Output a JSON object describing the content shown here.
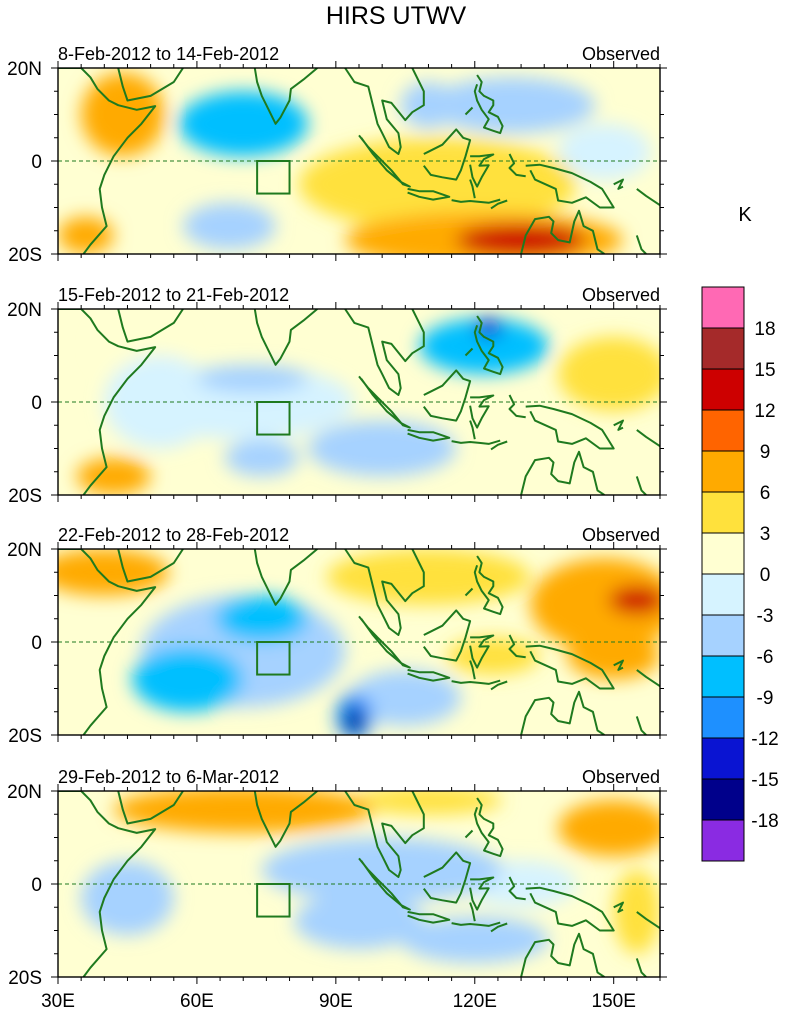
{
  "chart_data": {
    "type": "heatmap",
    "title": "HIRS UTWV",
    "units": "K",
    "xlim": [
      30,
      160
    ],
    "ylim": [
      -20,
      20
    ],
    "x_ticks": [
      {
        "value": 30,
        "label": "30E"
      },
      {
        "value": 60,
        "label": "60E"
      },
      {
        "value": 90,
        "label": "90E"
      },
      {
        "value": 120,
        "label": "120E"
      },
      {
        "value": 150,
        "label": "150E"
      }
    ],
    "y_ticks": [
      {
        "value": 20,
        "label": "20N"
      },
      {
        "value": 0,
        "label": "0"
      },
      {
        "value": -20,
        "label": "20S"
      }
    ],
    "box_region": {
      "lon": [
        73,
        80
      ],
      "lat": [
        -7,
        0
      ]
    },
    "colorbar": {
      "levels": [
        "-18",
        "-15",
        "-12",
        "-9",
        "-6",
        "-3",
        "0",
        "3",
        "6",
        "9",
        "12",
        "15",
        "18"
      ],
      "colors": [
        "#8a2be2",
        "#00008b",
        "#0a14d2",
        "#1e90ff",
        "#00bfff",
        "#a6d2ff",
        "#d6f3ff",
        "#ffffd2",
        "#ffe13c",
        "#ffaa00",
        "#ff6400",
        "#cd0000",
        "#a52a2a",
        "#ff69b4"
      ]
    },
    "panels": [
      {
        "period": "8-Feb-2012 to 14-Feb-2012",
        "label": "Observed",
        "blobs": [
          {
            "lon": 44,
            "lat": 10,
            "rlon": 9,
            "rlat": 9,
            "value": 7
          },
          {
            "lon": 36,
            "lat": -16,
            "rlon": 6,
            "rlat": 4,
            "value": 6
          },
          {
            "lon": 112,
            "lat": -5,
            "rlon": 30,
            "rlat": 10,
            "value": 4
          },
          {
            "lon": 122,
            "lat": -17,
            "rlon": 30,
            "rlat": 6,
            "value": 7
          },
          {
            "lon": 130,
            "lat": -17,
            "rlon": 14,
            "rlat": 3.5,
            "value": 12
          },
          {
            "lon": 70,
            "lat": 8,
            "rlon": 14,
            "rlat": 7,
            "value": -7
          },
          {
            "lon": 67,
            "lat": -14,
            "rlon": 10,
            "rlat": 5,
            "value": -5
          },
          {
            "lon": 110,
            "lat": 12,
            "rlon": 6,
            "rlat": 5,
            "value": -5
          },
          {
            "lon": 128,
            "lat": 12,
            "rlon": 18,
            "rlat": 6,
            "value": -4
          },
          {
            "lon": 148,
            "lat": 2,
            "rlon": 10,
            "rlat": 6,
            "value": -3
          }
        ]
      },
      {
        "period": "15-Feb-2012 to 21-Feb-2012",
        "label": "Observed",
        "blobs": [
          {
            "lon": 42,
            "lat": -16,
            "rlon": 8,
            "rlat": 4,
            "value": 7
          },
          {
            "lon": 150,
            "lat": 6,
            "rlon": 12,
            "rlat": 8,
            "value": 5
          },
          {
            "lon": 48,
            "lat": 12,
            "rlon": 10,
            "rlat": 6,
            "value": 2
          },
          {
            "lon": 122,
            "lat": 12,
            "rlon": 14,
            "rlat": 6,
            "value": -8
          },
          {
            "lon": 123,
            "lat": 16,
            "rlon": 3,
            "rlat": 2,
            "value": -14
          },
          {
            "lon": 70,
            "lat": 0,
            "rlon": 24,
            "rlat": 8,
            "value": -3
          },
          {
            "lon": 72,
            "lat": 5,
            "rlon": 12,
            "rlat": 3,
            "value": -5
          },
          {
            "lon": 74,
            "lat": -12,
            "rlon": 8,
            "rlat": 4,
            "value": -5
          },
          {
            "lon": 100,
            "lat": -10,
            "rlon": 16,
            "rlat": 6,
            "value": -4
          },
          {
            "lon": 52,
            "lat": 0,
            "rlon": 12,
            "rlat": 10,
            "value": -3
          }
        ]
      },
      {
        "period": "22-Feb-2012 to 28-Feb-2012",
        "label": "Observed",
        "blobs": [
          {
            "lon": 40,
            "lat": 15,
            "rlon": 14,
            "rlat": 5,
            "value": 6
          },
          {
            "lon": 110,
            "lat": 14,
            "rlon": 22,
            "rlat": 6,
            "value": 5
          },
          {
            "lon": 148,
            "lat": 8,
            "rlon": 16,
            "rlat": 10,
            "value": 8
          },
          {
            "lon": 155,
            "lat": 9,
            "rlon": 6,
            "rlat": 3,
            "value": 12
          },
          {
            "lon": 150,
            "lat": -3,
            "rlon": 10,
            "rlat": 5,
            "value": 7
          },
          {
            "lon": 124,
            "lat": -3,
            "rlon": 10,
            "rlat": 4,
            "value": 4
          },
          {
            "lon": 70,
            "lat": -2,
            "rlon": 22,
            "rlat": 12,
            "value": -5
          },
          {
            "lon": 58,
            "lat": -8,
            "rlon": 12,
            "rlat": 7,
            "value": -9
          },
          {
            "lon": 74,
            "lat": 5,
            "rlon": 10,
            "rlat": 5,
            "value": -7
          },
          {
            "lon": 94,
            "lat": -16,
            "rlon": 4,
            "rlat": 5,
            "value": -12
          },
          {
            "lon": 94,
            "lat": -17,
            "rlon": 2,
            "rlat": 3,
            "value": -16
          },
          {
            "lon": 105,
            "lat": -12,
            "rlon": 12,
            "rlat": 6,
            "value": -4
          }
        ]
      },
      {
        "period": "29-Feb-2012 to 6-Mar-2012",
        "label": "Observed",
        "blobs": [
          {
            "lon": 70,
            "lat": 16,
            "rlon": 28,
            "rlat": 5,
            "value": 7
          },
          {
            "lon": 150,
            "lat": 12,
            "rlon": 12,
            "rlat": 6,
            "value": 8
          },
          {
            "lon": 155,
            "lat": -6,
            "rlon": 5,
            "rlat": 9,
            "value": 4
          },
          {
            "lon": 110,
            "lat": 18,
            "rlon": 16,
            "rlat": 3,
            "value": 4
          },
          {
            "lon": 100,
            "lat": 3,
            "rlon": 26,
            "rlat": 7,
            "value": -6
          },
          {
            "lon": 95,
            "lat": -8,
            "rlon": 14,
            "rlat": 6,
            "value": -6
          },
          {
            "lon": 120,
            "lat": -12,
            "rlon": 16,
            "rlat": 5,
            "value": -5
          },
          {
            "lon": 45,
            "lat": -3,
            "rlon": 10,
            "rlat": 8,
            "value": -6
          },
          {
            "lon": 130,
            "lat": 0,
            "rlon": 12,
            "rlat": 5,
            "value": -3
          }
        ]
      }
    ]
  }
}
